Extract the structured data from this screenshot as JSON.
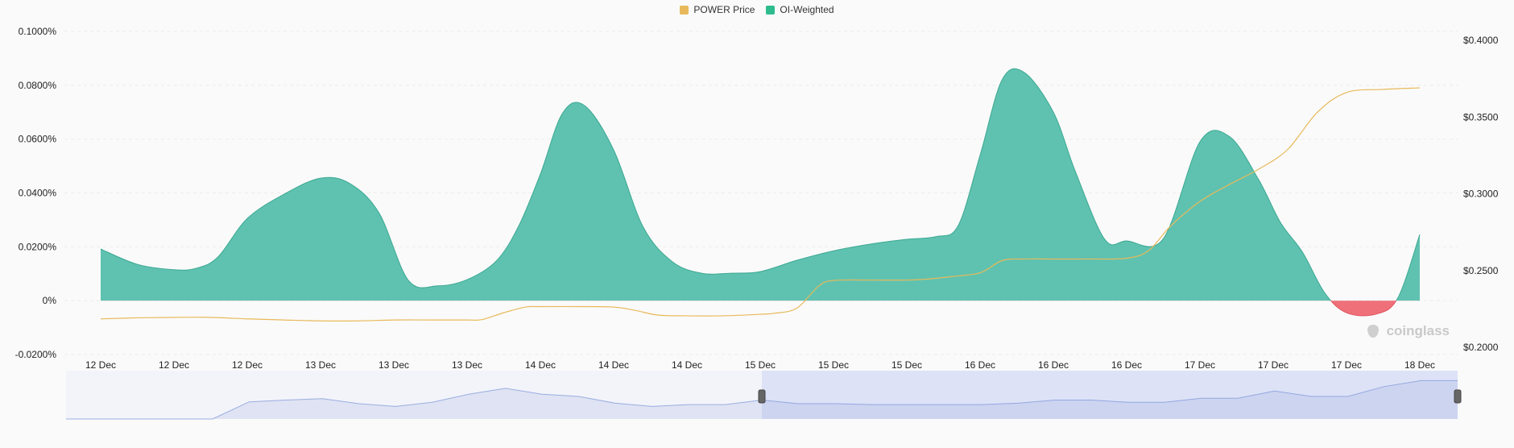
{
  "legend": {
    "price_label": "POWER Price",
    "oi_label": "OI-Weighted",
    "price_color": "#e8b95a",
    "oi_color": "#2ebc8e"
  },
  "watermark": "coinglass",
  "chart_data": {
    "type": "area",
    "title": "",
    "xlabel": "",
    "ylabel": "",
    "legend_position": "top-center",
    "grid": true,
    "x_ticks": [
      "12 Dec",
      "12 Dec",
      "12 Dec",
      "13 Dec",
      "13 Dec",
      "13 Dec",
      "14 Dec",
      "14 Dec",
      "14 Dec",
      "15 Dec",
      "15 Dec",
      "15 Dec",
      "16 Dec",
      "16 Dec",
      "16 Dec",
      "17 Dec",
      "17 Dec",
      "17 Dec",
      "18 Dec"
    ],
    "y_left": {
      "ticks": [
        "0.1000%",
        "0.0800%",
        "0.0600%",
        "0.0400%",
        "0.0200%",
        "0%",
        "-0.0200%"
      ],
      "range": [
        -0.02,
        0.1
      ]
    },
    "y_right": {
      "ticks": [
        "$0.4000",
        "$0.3500",
        "$0.3000",
        "$0.2500",
        "$0.2000"
      ],
      "range": [
        0.2,
        0.4
      ]
    },
    "x_range": [
      0,
      18
    ],
    "series": [
      {
        "name": "OI-Weighted",
        "axis": "left",
        "unit": "%",
        "x": [
          0,
          0.5,
          1,
          1.3,
          1.6,
          2,
          2.5,
          3,
          3.4,
          3.8,
          4.2,
          4.6,
          5,
          5.4,
          5.7,
          6,
          6.3,
          6.6,
          7,
          7.4,
          7.8,
          8.2,
          8.6,
          9,
          9.5,
          10,
          10.5,
          11,
          11.4,
          11.7,
          12,
          12.3,
          12.6,
          13,
          13.3,
          13.7,
          14,
          14.5,
          15,
          15.4,
          15.8,
          16.1,
          16.4,
          16.7,
          17,
          17.4,
          17.7,
          18
        ],
        "values": [
          0.0192,
          0.0135,
          0.0115,
          0.012,
          0.0162,
          0.0305,
          0.0395,
          0.0455,
          0.0435,
          0.0325,
          0.0075,
          0.0055,
          0.0078,
          0.0148,
          0.0275,
          0.047,
          0.0695,
          0.0725,
          0.056,
          0.0275,
          0.0145,
          0.0102,
          0.0102,
          0.0108,
          0.015,
          0.0185,
          0.021,
          0.0228,
          0.0238,
          0.0278,
          0.054,
          0.082,
          0.0848,
          0.07,
          0.048,
          0.0228,
          0.0222,
          0.023,
          0.059,
          0.061,
          0.045,
          0.029,
          0.018,
          0.003,
          -0.0045,
          -0.005,
          0.001,
          0.0246
        ]
      },
      {
        "name": "POWER Price",
        "axis": "right",
        "unit": "$",
        "x": [
          0,
          0.5,
          1,
          1.5,
          2,
          2.5,
          3,
          3.5,
          4,
          4.5,
          5,
          5.2,
          5.5,
          5.8,
          6,
          6.5,
          7,
          7.3,
          7.6,
          8,
          8.5,
          9,
          9.2,
          9.5,
          9.8,
          10,
          10.5,
          11,
          11.3,
          11.6,
          12,
          12.3,
          12.6,
          13,
          13.5,
          14,
          14.3,
          14.6,
          15,
          15.4,
          15.8,
          16.2,
          16.6,
          17,
          17.5,
          18
        ],
        "values": [
          0.2185,
          0.2192,
          0.2195,
          0.2195,
          0.2185,
          0.2178,
          0.2172,
          0.2172,
          0.2178,
          0.2178,
          0.2178,
          0.218,
          0.2225,
          0.2262,
          0.2265,
          0.2265,
          0.2262,
          0.224,
          0.221,
          0.2205,
          0.2205,
          0.2215,
          0.2222,
          0.2255,
          0.24,
          0.2435,
          0.2438,
          0.2438,
          0.2445,
          0.246,
          0.2485,
          0.2565,
          0.2575,
          0.2575,
          0.2575,
          0.258,
          0.263,
          0.279,
          0.295,
          0.306,
          0.316,
          0.329,
          0.353,
          0.366,
          0.368,
          0.369
        ]
      }
    ],
    "navigator": {
      "selected_range": [
        9.0,
        18.0
      ],
      "values": [
        0,
        0,
        0,
        0,
        0,
        0.38,
        0.42,
        0.45,
        0.34,
        0.28,
        0.37,
        0.55,
        0.68,
        0.55,
        0.5,
        0.35,
        0.28,
        0.32,
        0.32,
        0.42,
        0.34,
        0.34,
        0.32,
        0.32,
        0.32,
        0.32,
        0.35,
        0.42,
        0.42,
        0.37,
        0.37,
        0.46,
        0.46,
        0.62,
        0.5,
        0.5,
        0.72,
        0.85,
        0.85
      ]
    }
  }
}
